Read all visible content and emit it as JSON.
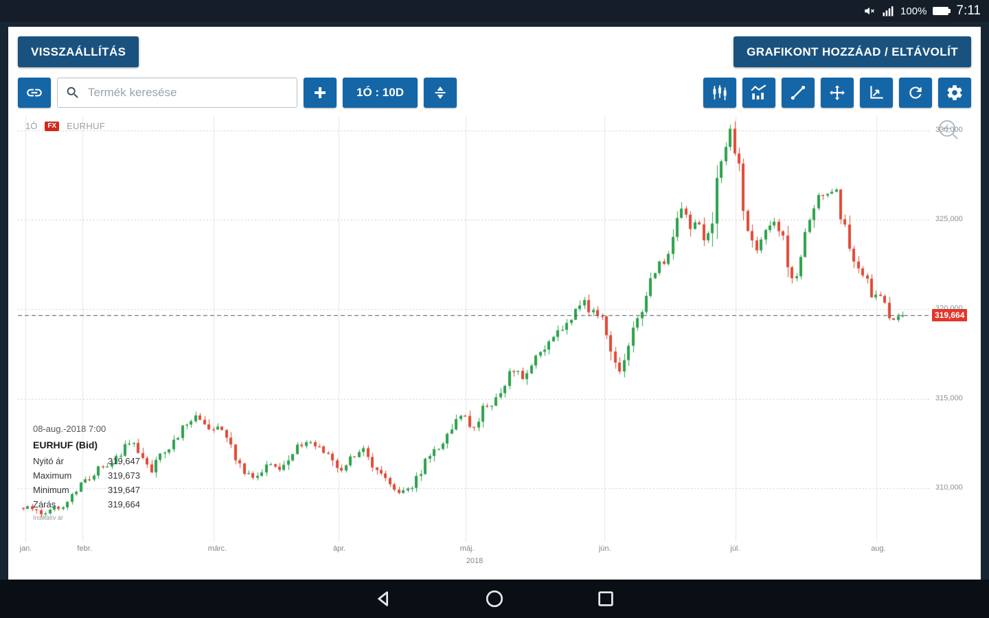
{
  "status_bar": {
    "battery_percent": "100%",
    "time": "7:11"
  },
  "header": {
    "reset_button": "VISSZAÁLLÍTÁS",
    "add_remove_button": "GRAFIKONT HOZZÁAD / ELTÁVOLÍT"
  },
  "toolbar": {
    "search_placeholder": "Termék keresése",
    "interval_button": "1Ó : 10D"
  },
  "chart": {
    "timeframe_label": "1Ó",
    "fx_badge": "FX",
    "symbol": "EURHUF"
  },
  "tooltip": {
    "date": "08-aug.-2018 7:00",
    "title": "EURHUF (Bid)",
    "rows": [
      {
        "label": "Nyitó ár",
        "value": "319,647"
      },
      {
        "label": "Maximum",
        "value": "319,673"
      },
      {
        "label": "Minimum",
        "value": "319,647"
      },
      {
        "label": "Zárás",
        "value": "319,664"
      }
    ],
    "footnote": "Indikatív ár"
  },
  "icons": {
    "status_bar": [
      "mute",
      "signal",
      "battery"
    ],
    "toolbar_left": [
      "link",
      "search",
      "plus",
      "expand-vertical"
    ],
    "toolbar_right": [
      "candlestick",
      "chart-style",
      "trendline",
      "move",
      "axes",
      "refresh",
      "settings"
    ],
    "chart": [
      "zoom-watermark"
    ],
    "nav_bar": [
      "back",
      "home",
      "recents"
    ]
  },
  "chart_data": {
    "type": "candlestick",
    "symbol": "EURHUF",
    "timeframe": "1Ó",
    "period": "10D",
    "last_price": 319.664,
    "last_price_label": "319,664",
    "y_axis": {
      "min": 307.0,
      "max": 330.8,
      "ticks": [
        {
          "label": "330,000",
          "value": 330
        },
        {
          "label": "325,000",
          "value": 325
        },
        {
          "label": "320,000",
          "value": 320
        },
        {
          "label": "315,000",
          "value": 315
        },
        {
          "label": "310,000",
          "value": 310
        }
      ]
    },
    "x_axis": {
      "year": "2018",
      "months": [
        {
          "label": "jan.",
          "t": 0.008
        },
        {
          "label": "febr.",
          "t": 0.071
        },
        {
          "label": "márc.",
          "t": 0.214
        },
        {
          "label": "ápr.",
          "t": 0.351
        },
        {
          "label": "máj.",
          "t": 0.49
        },
        {
          "label": "jún.",
          "t": 0.642
        },
        {
          "label": "júl.",
          "t": 0.786
        },
        {
          "label": "aug.",
          "t": 0.94
        }
      ]
    },
    "price_path_anchors": [
      [
        0.0,
        308.9
      ],
      [
        0.027,
        308.5
      ],
      [
        0.05,
        309.3
      ],
      [
        0.073,
        310.6
      ],
      [
        0.095,
        311.4
      ],
      [
        0.122,
        312.5
      ],
      [
        0.134,
        312.0
      ],
      [
        0.145,
        310.9
      ],
      [
        0.164,
        312.2
      ],
      [
        0.187,
        313.7
      ],
      [
        0.198,
        314.2
      ],
      [
        0.21,
        313.3
      ],
      [
        0.225,
        313.5
      ],
      [
        0.237,
        312.2
      ],
      [
        0.252,
        311.0
      ],
      [
        0.267,
        310.6
      ],
      [
        0.282,
        311.4
      ],
      [
        0.294,
        311.0
      ],
      [
        0.309,
        312.3
      ],
      [
        0.324,
        312.5
      ],
      [
        0.34,
        312.2
      ],
      [
        0.355,
        311.0
      ],
      [
        0.37,
        311.4
      ],
      [
        0.382,
        312.3
      ],
      [
        0.393,
        311.8
      ],
      [
        0.408,
        310.6
      ],
      [
        0.42,
        310.0
      ],
      [
        0.431,
        309.7
      ],
      [
        0.443,
        309.9
      ],
      [
        0.454,
        311.0
      ],
      [
        0.469,
        312.3
      ],
      [
        0.481,
        312.9
      ],
      [
        0.489,
        313.5
      ],
      [
        0.5,
        314.1
      ],
      [
        0.511,
        313.3
      ],
      [
        0.523,
        314.5
      ],
      [
        0.534,
        314.8
      ],
      [
        0.546,
        315.6
      ],
      [
        0.557,
        316.6
      ],
      [
        0.569,
        316.0
      ],
      [
        0.58,
        317.2
      ],
      [
        0.592,
        317.7
      ],
      [
        0.603,
        318.5
      ],
      [
        0.615,
        319.1
      ],
      [
        0.626,
        319.8
      ],
      [
        0.637,
        320.6
      ],
      [
        0.649,
        319.7
      ],
      [
        0.66,
        319.5
      ],
      [
        0.672,
        317.5
      ],
      [
        0.679,
        316.6
      ],
      [
        0.691,
        318.3
      ],
      [
        0.702,
        320.2
      ],
      [
        0.71,
        321.0
      ],
      [
        0.721,
        322.2
      ],
      [
        0.733,
        322.9
      ],
      [
        0.744,
        324.8
      ],
      [
        0.752,
        325.6
      ],
      [
        0.76,
        324.5
      ],
      [
        0.767,
        325.2
      ],
      [
        0.775,
        323.3
      ],
      [
        0.782,
        324.8
      ],
      [
        0.79,
        327.9
      ],
      [
        0.798,
        328.7
      ],
      [
        0.805,
        330.0
      ],
      [
        0.813,
        328.3
      ],
      [
        0.817,
        326.0
      ],
      [
        0.824,
        324.8
      ],
      [
        0.832,
        323.3
      ],
      [
        0.84,
        323.9
      ],
      [
        0.847,
        324.5
      ],
      [
        0.855,
        324.7
      ],
      [
        0.863,
        324.1
      ],
      [
        0.87,
        322.5
      ],
      [
        0.878,
        321.8
      ],
      [
        0.885,
        322.9
      ],
      [
        0.893,
        324.5
      ],
      [
        0.901,
        326.0
      ],
      [
        0.908,
        326.6
      ],
      [
        0.916,
        326.4
      ],
      [
        0.924,
        327.0
      ],
      [
        0.931,
        325.2
      ],
      [
        0.939,
        323.7
      ],
      [
        0.947,
        322.7
      ],
      [
        0.954,
        322.3
      ],
      [
        0.962,
        321.0
      ],
      [
        0.969,
        320.6
      ],
      [
        0.977,
        320.8
      ],
      [
        0.985,
        319.8
      ],
      [
        0.992,
        319.4
      ],
      [
        1.0,
        319.664
      ]
    ],
    "render": {
      "num_candles": 200,
      "seed": 12,
      "jitter": 0.3,
      "wick": 0.4,
      "body_width": 4,
      "up_color": "#2ca24c",
      "down_color": "#e04a36",
      "vgrid_color": "#e4e6e8",
      "hgrid_color": "#c9ced2",
      "dashed_line_color": "#3f5a6b",
      "tag_color": "#e2372b"
    }
  }
}
